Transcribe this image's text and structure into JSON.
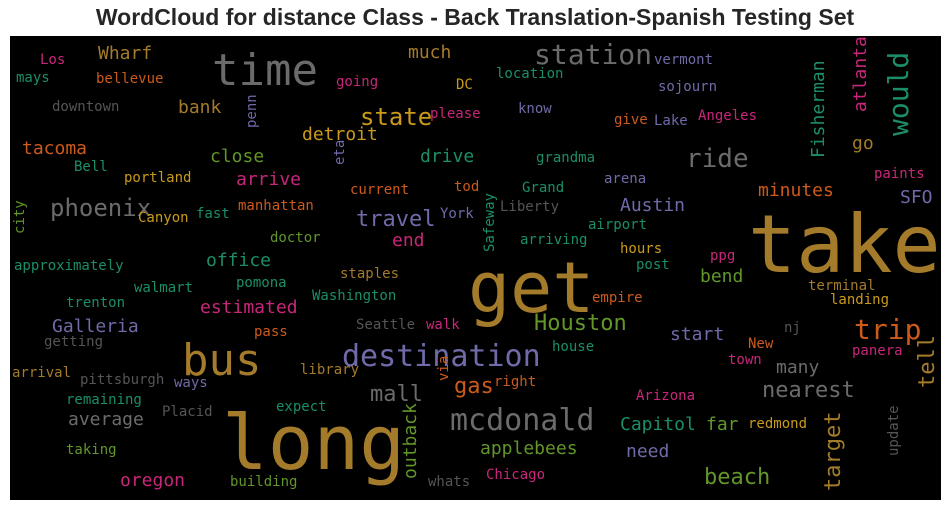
{
  "title": "WordCloud for distance Class - Back Translation-Spanish Testing Set",
  "words": [
    {
      "text": "take",
      "color": "#a47b2a"
    },
    {
      "text": "long",
      "color": "#a47b2a"
    },
    {
      "text": "get",
      "color": "#a47b2a"
    },
    {
      "text": "time",
      "color": "#6b6b6b"
    },
    {
      "text": "bus",
      "color": "#a47b2a"
    },
    {
      "text": "destination",
      "color": "#6f6aa8"
    },
    {
      "text": "mcdonald",
      "color": "#6b6b6b"
    },
    {
      "text": "station",
      "color": "#6b6b6b"
    },
    {
      "text": "would",
      "color": "#1b8e68"
    },
    {
      "text": "trip",
      "color": "#cc5a1b"
    },
    {
      "text": "ride",
      "color": "#6b6b6b"
    },
    {
      "text": "state",
      "color": "#c99a1b"
    },
    {
      "text": "phoenix",
      "color": "#6b6b6b"
    },
    {
      "text": "Houston",
      "color": "#62962a"
    },
    {
      "text": "beach",
      "color": "#62962a"
    },
    {
      "text": "mall",
      "color": "#6b6b6b"
    },
    {
      "text": "nearest",
      "color": "#6b6b6b"
    },
    {
      "text": "target",
      "color": "#a47b2a"
    },
    {
      "text": "travel",
      "color": "#6f6aa8"
    },
    {
      "text": "gas",
      "color": "#cc5a1b"
    },
    {
      "text": "tell",
      "color": "#a47b2a"
    },
    {
      "text": "Fisherman",
      "color": "#1b8e68"
    },
    {
      "text": "atlanta",
      "color": "#c8267a"
    },
    {
      "text": "Capitol",
      "color": "#1b8e68"
    },
    {
      "text": "Galleria",
      "color": "#6f6aa8"
    },
    {
      "text": "applebees",
      "color": "#62962a"
    },
    {
      "text": "average",
      "color": "#6b6b6b"
    },
    {
      "text": "Austin",
      "color": "#6f6aa8"
    },
    {
      "text": "oregon",
      "color": "#c8267a"
    },
    {
      "text": "detroit",
      "color": "#c99a1b"
    },
    {
      "text": "estimated",
      "color": "#c8267a"
    },
    {
      "text": "outback",
      "color": "#62962a"
    },
    {
      "text": "Wharf",
      "color": "#a47b2a"
    },
    {
      "text": "bank",
      "color": "#a47b2a"
    },
    {
      "text": "many",
      "color": "#6b6b6b"
    },
    {
      "text": "start",
      "color": "#6f6aa8"
    },
    {
      "text": "far",
      "color": "#62962a"
    },
    {
      "text": "need",
      "color": "#6f6aa8"
    },
    {
      "text": "minutes",
      "color": "#cc5a1b"
    },
    {
      "text": "tacoma",
      "color": "#cc5a1b"
    },
    {
      "text": "drive",
      "color": "#1b8e68"
    },
    {
      "text": "close",
      "color": "#62962a"
    },
    {
      "text": "arrive",
      "color": "#c8267a"
    },
    {
      "text": "office",
      "color": "#1b8e68"
    },
    {
      "text": "much",
      "color": "#a47b2a"
    },
    {
      "text": "go",
      "color": "#a47b2a"
    },
    {
      "text": "end",
      "color": "#c8267a"
    },
    {
      "text": "bend",
      "color": "#62962a"
    },
    {
      "text": "SFO",
      "color": "#6f6aa8"
    },
    {
      "text": "Angeles",
      "color": "#c8267a"
    },
    {
      "text": "portland",
      "color": "#c99a1b"
    },
    {
      "text": "Chicago",
      "color": "#c8267a"
    },
    {
      "text": "building",
      "color": "#62962a"
    },
    {
      "text": "taking",
      "color": "#62962a"
    },
    {
      "text": "Canyon",
      "color": "#c99a1b"
    },
    {
      "text": "fast",
      "color": "#1b8e68"
    },
    {
      "text": "manhattan",
      "color": "#cc5a1b"
    },
    {
      "text": "doctor",
      "color": "#62962a"
    },
    {
      "text": "pomona",
      "color": "#1b8e68"
    },
    {
      "text": "Washington",
      "color": "#1b8e68"
    },
    {
      "text": "staples",
      "color": "#a47b2a"
    },
    {
      "text": "walmart",
      "color": "#1b8e68"
    },
    {
      "text": "trenton",
      "color": "#1b8e68"
    },
    {
      "text": "approximately",
      "color": "#1b8e68"
    },
    {
      "text": "city",
      "color": "#62962a"
    },
    {
      "text": "Bell",
      "color": "#1b8e68"
    },
    {
      "text": "mays",
      "color": "#1b8e68"
    },
    {
      "text": "Los",
      "color": "#c8267a"
    },
    {
      "text": "bellevue",
      "color": "#cc5a1b"
    },
    {
      "text": "downtown",
      "color": "#555555"
    },
    {
      "text": "penn",
      "color": "#6f6aa8"
    },
    {
      "text": "going",
      "color": "#c8267a"
    },
    {
      "text": "DC",
      "color": "#c99a1b"
    },
    {
      "text": "please",
      "color": "#c8267a"
    },
    {
      "text": "location",
      "color": "#1b8e68"
    },
    {
      "text": "know",
      "color": "#6f6aa8"
    },
    {
      "text": "vermont",
      "color": "#6f6aa8"
    },
    {
      "text": "sojourn",
      "color": "#6f6aa8"
    },
    {
      "text": "give",
      "color": "#cc5a1b"
    },
    {
      "text": "Lake",
      "color": "#6f6aa8"
    },
    {
      "text": "eta",
      "color": "#6f6aa8"
    },
    {
      "text": "current",
      "color": "#cc5a1b"
    },
    {
      "text": "tod",
      "color": "#cc5a1b"
    },
    {
      "text": "grandma",
      "color": "#1b8e68"
    },
    {
      "text": "Grand",
      "color": "#1b8e68"
    },
    {
      "text": "arena",
      "color": "#6f6aa8"
    },
    {
      "text": "paints",
      "color": "#c8267a"
    },
    {
      "text": "York",
      "color": "#6f6aa8"
    },
    {
      "text": "Liberty",
      "color": "#555555"
    },
    {
      "text": "Safeway",
      "color": "#1b8e68"
    },
    {
      "text": "arriving",
      "color": "#1b8e68"
    },
    {
      "text": "airport",
      "color": "#1b8e68"
    },
    {
      "text": "hours",
      "color": "#c99a1b"
    },
    {
      "text": "post",
      "color": "#1b8e68"
    },
    {
      "text": "ppg",
      "color": "#c8267a"
    },
    {
      "text": "terminal",
      "color": "#a47b2a"
    },
    {
      "text": "landing",
      "color": "#c99a1b"
    },
    {
      "text": "empire",
      "color": "#cc5a1b"
    },
    {
      "text": "pass",
      "color": "#cc5a1b"
    },
    {
      "text": "Seattle",
      "color": "#555555"
    },
    {
      "text": "walk",
      "color": "#c8267a"
    },
    {
      "text": "nj",
      "color": "#555555"
    },
    {
      "text": "New",
      "color": "#cc5a1b"
    },
    {
      "text": "town",
      "color": "#c8267a"
    },
    {
      "text": "panera",
      "color": "#c8267a"
    },
    {
      "text": "house",
      "color": "#1b8e68"
    },
    {
      "text": "getting",
      "color": "#555555"
    },
    {
      "text": "arrival",
      "color": "#a47b2a"
    },
    {
      "text": "pittsburgh",
      "color": "#555555"
    },
    {
      "text": "ways",
      "color": "#6f6aa8"
    },
    {
      "text": "library",
      "color": "#a47b2a"
    },
    {
      "text": "via",
      "color": "#cc5a1b"
    },
    {
      "text": "right",
      "color": "#cc5a1b"
    },
    {
      "text": "Arizona",
      "color": "#c8267a"
    },
    {
      "text": "remaining",
      "color": "#1b8e68"
    },
    {
      "text": "Placid",
      "color": "#555555"
    },
    {
      "text": "expect",
      "color": "#1b8e68"
    },
    {
      "text": "redmond",
      "color": "#c99a1b"
    },
    {
      "text": "update",
      "color": "#555555"
    },
    {
      "text": "whats",
      "color": "#555555"
    }
  ]
}
